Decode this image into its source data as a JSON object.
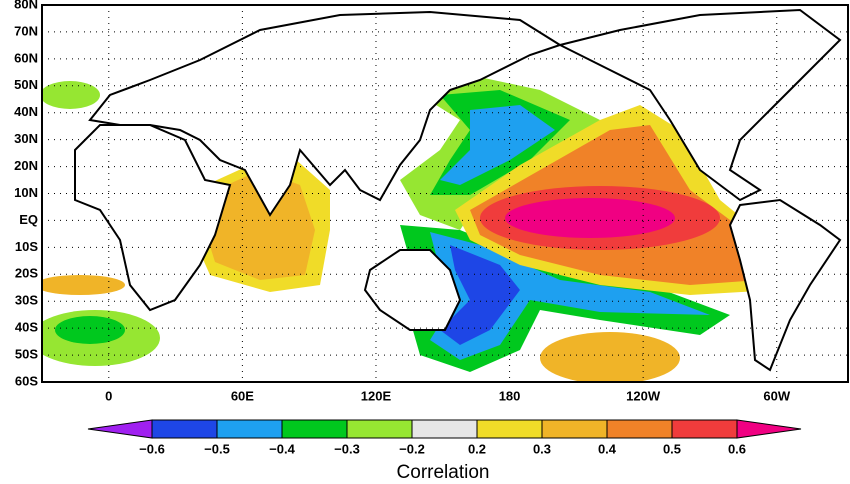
{
  "map": {
    "xlim": [
      -30,
      332
    ],
    "ylim": [
      -60,
      80
    ],
    "lat_ticks": [
      {
        "value": 80,
        "label": "80N"
      },
      {
        "value": 70,
        "label": "70N"
      },
      {
        "value": 60,
        "label": "60N"
      },
      {
        "value": 50,
        "label": "50N"
      },
      {
        "value": 40,
        "label": "40N"
      },
      {
        "value": 30,
        "label": "30N"
      },
      {
        "value": 20,
        "label": "20N"
      },
      {
        "value": 10,
        "label": "10N"
      },
      {
        "value": 0,
        "label": "EQ"
      },
      {
        "value": -10,
        "label": "10S"
      },
      {
        "value": -20,
        "label": "20S"
      },
      {
        "value": -30,
        "label": "30S"
      },
      {
        "value": -40,
        "label": "40S"
      },
      {
        "value": -50,
        "label": "50S"
      },
      {
        "value": -60,
        "label": "60S"
      }
    ],
    "lon_ticks": [
      0,
      {
        "value": 60,
        "label": "60E"
      },
      {
        "value": 120,
        "label": "120E"
      },
      180,
      {
        "value": 240,
        "label": "120W"
      },
      {
        "value": 300,
        "label": "60W"
      }
    ],
    "colorbar": {
      "label": "Correlation",
      "ticks": [
        {
          "value": -0.6,
          "label": "−0.6"
        },
        {
          "value": -0.5,
          "label": "−0.5"
        },
        {
          "value": -0.4,
          "label": "−0.4"
        },
        {
          "value": -0.3,
          "label": "−0.3"
        },
        {
          "value": -0.2,
          "label": "−0.2"
        },
        0.2,
        0.3,
        0.4,
        0.5,
        0.6
      ],
      "colors": [
        "#a020f0",
        "#1e46e6",
        "#1ea0f0",
        "#00c81e",
        "#96e632",
        "#e6e6e6",
        "#f0dc28",
        "#f0b428",
        "#f08228",
        "#f03c3c",
        "#f00082"
      ]
    }
  }
}
